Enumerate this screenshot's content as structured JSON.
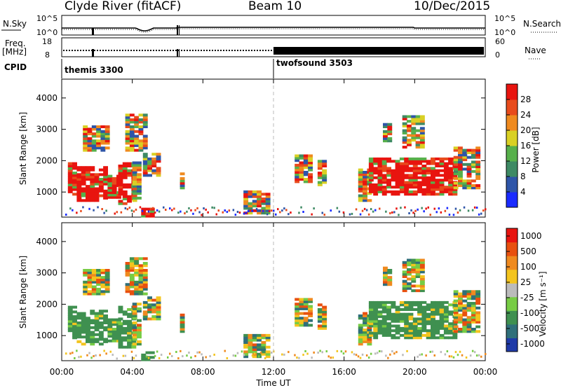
{
  "header": {
    "title": "Clyde River (fitACF)",
    "beam": "Beam 10",
    "date": "10/Dec/2015"
  },
  "ancillary": {
    "nsky_label": "N.Sky",
    "nsearch_label": "N.Search",
    "freq_label_line1": "Freq.",
    "freq_label_line2": "[MHz]",
    "nave_label": "Nave",
    "cpid_label": "CPID",
    "left_ticks_noise": [
      "10^5",
      "10^0"
    ],
    "right_ticks_noise": [
      "10^5",
      "10^0"
    ],
    "left_ticks_freq": [
      "18",
      "8"
    ],
    "right_ticks_nave": [
      "60",
      "0"
    ],
    "cpid_segments": [
      {
        "label": "themis 3300",
        "start_hour": 0
      },
      {
        "label": "twofsound 3503",
        "start_hour": 12
      }
    ]
  },
  "chart_data": [
    {
      "type": "heatmap",
      "ylabel": "Slant Range [km]",
      "yticks": [
        "1000",
        "2000",
        "3000",
        "4000"
      ],
      "ylim": [
        200,
        4600
      ],
      "colorbar": {
        "label": "Power [dB]",
        "ticks": [
          "4",
          "8",
          "12",
          "16",
          "20",
          "24",
          "28"
        ],
        "colors": [
          "#1a2bff",
          "#2e55a8",
          "#3e8a64",
          "#57b04b",
          "#d9d024",
          "#ef8a1f",
          "#e84b1c",
          "#e8140f"
        ]
      }
    },
    {
      "type": "heatmap",
      "ylabel": "Slant Range [km]",
      "yticks": [
        "1000",
        "2000",
        "3000",
        "4000"
      ],
      "ylim": [
        200,
        4600
      ],
      "xlabel": "Time UT",
      "xticks": [
        "00:00",
        "04:00",
        "08:00",
        "12:00",
        "16:00",
        "20:00",
        "00:00"
      ],
      "colorbar": {
        "label": "Velocity [m s⁻¹]",
        "ticks": [
          "1000",
          "500",
          "100",
          "25",
          "-25",
          "-100",
          "-500",
          "-1000"
        ],
        "colors": [
          "#1f3aa8",
          "#2f6f7a",
          "#3f9050",
          "#77cc44",
          "#bbbbbb",
          "#f3c41e",
          "#ef8a1f",
          "#e8500f",
          "#e8140f"
        ]
      }
    }
  ]
}
